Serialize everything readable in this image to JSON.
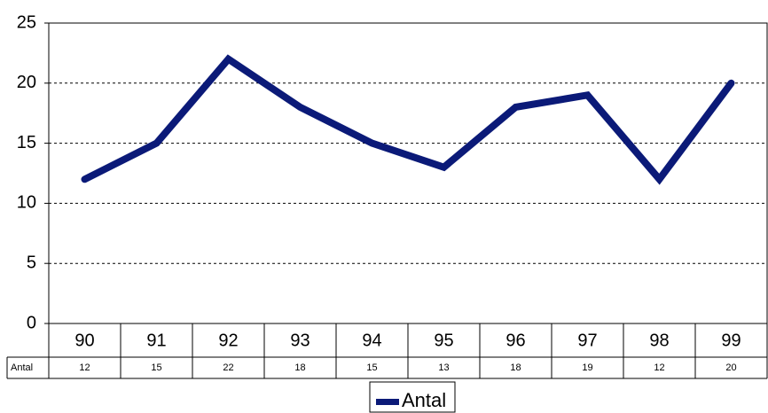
{
  "chart_data": {
    "type": "line",
    "categories": [
      "90",
      "91",
      "92",
      "93",
      "94",
      "95",
      "96",
      "97",
      "98",
      "99"
    ],
    "series": [
      {
        "name": "Antal",
        "color": "#0b1a78",
        "values": [
          12,
          15,
          22,
          18,
          15,
          13,
          18,
          19,
          12,
          20
        ]
      }
    ],
    "ylim": [
      0,
      25
    ],
    "yticks": [
      0,
      5,
      10,
      15,
      20,
      25
    ],
    "grid": true,
    "legend": "bottom"
  }
}
